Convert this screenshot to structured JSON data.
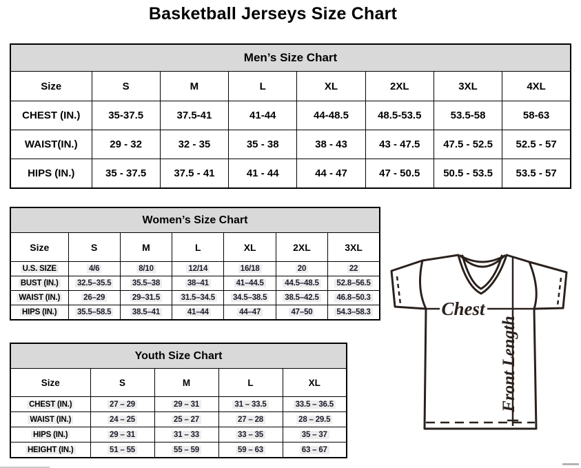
{
  "page_title": "Basketball Jerseys Size Chart",
  "mens": {
    "title": "Men’s Size Chart",
    "columns": [
      "Size",
      "S",
      "M",
      "L",
      "XL",
      "2XL",
      "3XL",
      "4XL"
    ],
    "rows": [
      {
        "label": "CHEST (IN.)",
        "values": [
          "35-37.5",
          "37.5-41",
          "41-44",
          "44-48.5",
          "48.5-53.5",
          "53.5-58",
          "58-63"
        ]
      },
      {
        "label": "WAIST(IN.)",
        "values": [
          "29 - 32",
          "32 - 35",
          "35 - 38",
          "38 - 43",
          "43 - 47.5",
          "47.5 - 52.5",
          "52.5 - 57"
        ]
      },
      {
        "label": "HIPS (IN.)",
        "values": [
          "35 - 37.5",
          "37.5 - 41",
          "41 - 44",
          "44 - 47",
          "47 - 50.5",
          "50.5 - 53.5",
          "53.5 - 57"
        ]
      }
    ]
  },
  "womens": {
    "title": "Women’s Size Chart",
    "columns": [
      "Size",
      "S",
      "M",
      "L",
      "XL",
      "2XL",
      "3XL"
    ],
    "rows": [
      {
        "label": "U.S. SIZE",
        "values": [
          "4/6",
          "8/10",
          "12/14",
          "16/18",
          "20",
          "22"
        ]
      },
      {
        "label": "BUST (IN.)",
        "values": [
          "32.5–35.5",
          "35.5–38",
          "38–41",
          "41–44.5",
          "44.5–48.5",
          "52.8–56.5"
        ]
      },
      {
        "label": "WAIST (IN.)",
        "values": [
          "26–29",
          "29–31.5",
          "31.5–34.5",
          "34.5–38.5",
          "38.5–42.5",
          "46.8–50.3"
        ]
      },
      {
        "label": "HIPS (IN.)",
        "values": [
          "35.5–58.5",
          "38.5–41",
          "41–44",
          "44–47",
          "47–50",
          "54.3–58.3"
        ]
      }
    ]
  },
  "youth": {
    "title": "Youth Size Chart",
    "columns": [
      "Size",
      "S",
      "M",
      "L",
      "XL"
    ],
    "rows": [
      {
        "label": "CHEST (IN.)",
        "values": [
          "27 – 29",
          "29 – 31",
          "31 – 33.5",
          "33.5 – 36.5"
        ]
      },
      {
        "label": "WAIST (IN.)",
        "values": [
          "24 – 25",
          "25 – 27",
          "27 – 28",
          "28 – 29.5"
        ]
      },
      {
        "label": "HIPS (IN.)",
        "values": [
          "29 – 31",
          "31 – 33",
          "33 – 35",
          "35 – 37"
        ]
      },
      {
        "label": "HEIGHT (IN.)",
        "values": [
          "51 – 55",
          "55 – 59",
          "59 – 63",
          "63 – 67"
        ]
      }
    ]
  },
  "diagram": {
    "chest_label": "Chest",
    "front_length_label": "Front Length"
  },
  "colors": {
    "band_background": "#d9d9d9",
    "table_border": "#000000",
    "diagram_stroke": "#2a211c",
    "data_text": "#1b1b2b"
  }
}
